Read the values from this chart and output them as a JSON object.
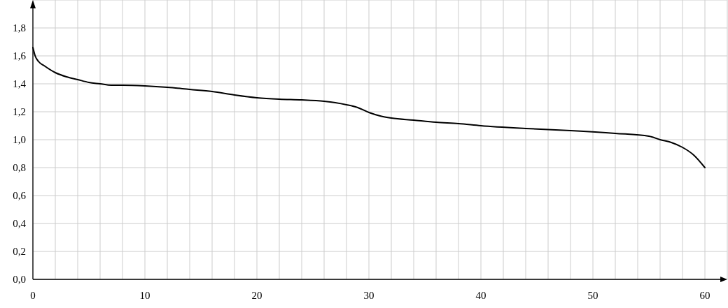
{
  "chart_data": {
    "type": "line",
    "x": [
      0,
      0.2,
      0.5,
      1,
      2,
      3,
      4,
      5,
      6,
      7,
      8,
      10,
      12,
      14,
      16,
      18,
      20,
      22,
      24,
      26,
      27,
      28,
      29,
      30,
      31,
      32,
      34,
      36,
      38,
      40,
      44,
      48,
      52,
      55,
      56,
      57,
      58,
      59,
      60
    ],
    "series": [
      {
        "color": "#000000",
        "values": [
          1.66,
          1.6,
          1.56,
          1.53,
          1.48,
          1.45,
          1.43,
          1.41,
          1.4,
          1.39,
          1.39,
          1.385,
          1.375,
          1.36,
          1.345,
          1.32,
          1.3,
          1.29,
          1.285,
          1.275,
          1.265,
          1.25,
          1.23,
          1.195,
          1.17,
          1.155,
          1.14,
          1.125,
          1.115,
          1.1,
          1.08,
          1.065,
          1.045,
          1.025,
          1.0,
          0.98,
          0.945,
          0.89,
          0.8
        ]
      }
    ],
    "xlim": [
      0,
      62
    ],
    "ylim": [
      0,
      2
    ],
    "xticks": [
      {
        "value": 0,
        "label": "0"
      },
      {
        "value": 2,
        "label": null
      },
      {
        "value": 4,
        "label": null
      },
      {
        "value": 6,
        "label": null
      },
      {
        "value": 8,
        "label": null
      },
      {
        "value": 10,
        "label": "10"
      },
      {
        "value": 12,
        "label": null
      },
      {
        "value": 14,
        "label": null
      },
      {
        "value": 16,
        "label": null
      },
      {
        "value": 18,
        "label": null
      },
      {
        "value": 20,
        "label": "20"
      },
      {
        "value": 22,
        "label": null
      },
      {
        "value": 24,
        "label": null
      },
      {
        "value": 26,
        "label": null
      },
      {
        "value": 28,
        "label": null
      },
      {
        "value": 30,
        "label": "30"
      },
      {
        "value": 32,
        "label": null
      },
      {
        "value": 34,
        "label": null
      },
      {
        "value": 36,
        "label": null
      },
      {
        "value": 38,
        "label": null
      },
      {
        "value": 40,
        "label": "40"
      },
      {
        "value": 42,
        "label": null
      },
      {
        "value": 44,
        "label": null
      },
      {
        "value": 46,
        "label": null
      },
      {
        "value": 48,
        "label": null
      },
      {
        "value": 50,
        "label": "50"
      },
      {
        "value": 52,
        "label": null
      },
      {
        "value": 54,
        "label": null
      },
      {
        "value": 56,
        "label": null
      },
      {
        "value": 58,
        "label": null
      },
      {
        "value": 60,
        "label": "60"
      },
      {
        "value": 62,
        "label": null
      }
    ],
    "yticks": [
      {
        "value": 0,
        "label": "0,0"
      },
      {
        "value": 0.2,
        "label": "0,2"
      },
      {
        "value": 0.4,
        "label": "0,4"
      },
      {
        "value": 0.6,
        "label": "0,6"
      },
      {
        "value": 0.8,
        "label": "0,8"
      },
      {
        "value": 1,
        "label": "1,0"
      },
      {
        "value": 1.2,
        "label": "1,2"
      },
      {
        "value": 1.4,
        "label": "1,4"
      },
      {
        "value": 1.6,
        "label": "1,6"
      },
      {
        "value": 1.8,
        "label": "1,8"
      },
      {
        "value": 2,
        "label": null
      }
    ],
    "grid": true,
    "marker": "none",
    "line_style": "solid"
  }
}
